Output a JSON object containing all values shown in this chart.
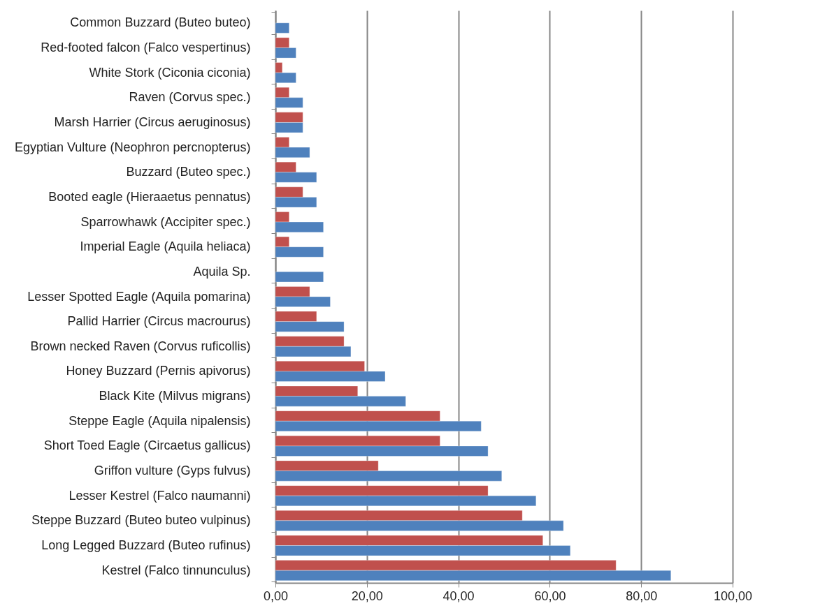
{
  "chart_data": {
    "type": "bar",
    "orientation": "horizontal",
    "categories": [
      "Common Buzzard (Buteo buteo)",
      "Red-footed falcon (Falco vespertinus)",
      "White Stork (Ciconia ciconia)",
      "Raven (Corvus spec.)",
      "Marsh Harrier (Circus aeruginosus)",
      "Egyptian Vulture (Neophron percnopterus)",
      "Buzzard (Buteo spec.)",
      "Booted eagle (Hieraaetus pennatus)",
      "Sparrowhawk (Accipiter spec.)",
      "Imperial Eagle (Aquila heliaca)",
      "Aquila Sp.",
      "Lesser Spotted Eagle (Aquila pomarina)",
      "Pallid Harrier (Circus macrourus)",
      "Brown necked Raven (Corvus ruficollis)",
      "Honey Buzzard (Pernis apivorus)",
      "Black Kite (Milvus migrans)",
      "Steppe Eagle (Aquila nipalensis)",
      "Short Toed Eagle (Circaetus gallicus)",
      "Griffon vulture (Gyps fulvus)",
      "Lesser Kestrel (Falco naumanni)",
      "Steppe Buzzard (Buteo buteo vulpinus)",
      "Long Legged Buzzard (Buteo rufinus)",
      "Kestrel (Falco tinnunculus)"
    ],
    "series": [
      {
        "color": "#c0504d",
        "values": [
          null,
          3.0,
          1.5,
          3.0,
          6.0,
          3.0,
          4.5,
          6.0,
          3.0,
          3.0,
          null,
          7.5,
          9.0,
          15.0,
          19.5,
          18.0,
          36.0,
          36.0,
          22.5,
          46.5,
          54.0,
          58.5,
          74.5
        ]
      },
      {
        "color": "#4f81bd",
        "values": [
          3.0,
          4.5,
          4.5,
          6.0,
          6.0,
          7.5,
          9.0,
          9.0,
          10.5,
          10.5,
          10.5,
          12.0,
          15.0,
          16.5,
          24.0,
          28.5,
          45.0,
          46.5,
          49.5,
          57.0,
          63.0,
          64.5,
          86.5
        ]
      }
    ],
    "xlim": [
      0,
      100
    ],
    "xticks": [
      {
        "value": 0,
        "label": "0,00"
      },
      {
        "value": 20,
        "label": "20,00"
      },
      {
        "value": 40,
        "label": "40,00"
      },
      {
        "value": 60,
        "label": "60,00"
      },
      {
        "value": 80,
        "label": "80,00"
      },
      {
        "value": 100,
        "label": "100,00"
      }
    ],
    "grid": "x"
  }
}
